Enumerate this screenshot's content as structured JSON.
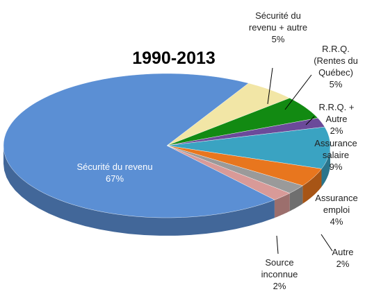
{
  "chart_data": {
    "type": "pie3d",
    "title": "1990-2013",
    "categories": [
      "Sécurité du revenu + autre",
      "R.R.Q. (Rentes du Québec)",
      "R.R.Q. + Autre",
      "Assurance salaire",
      "Assurance emploi",
      "Autre",
      "Source inconnue",
      "Sécurité du revenu"
    ],
    "values": [
      5,
      5,
      2,
      9,
      4,
      2,
      2,
      67
    ],
    "value_labels": [
      "5%",
      "5%",
      "2%",
      "9%",
      "4%",
      "2%",
      "2%",
      "67%"
    ],
    "colors": [
      "#f2e6a6",
      "#128a12",
      "#6b4a9a",
      "#3aa3c2",
      "#e8761e",
      "#9a9a9a",
      "#d89a98",
      "#5b8fd4"
    ]
  }
}
